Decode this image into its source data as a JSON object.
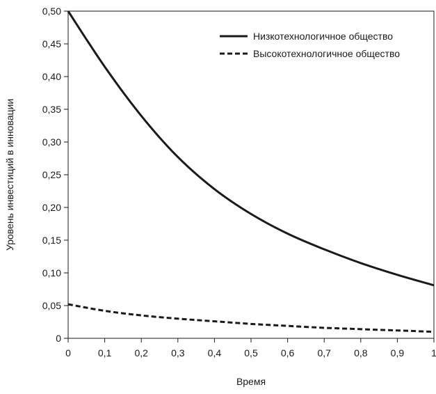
{
  "chart_data": {
    "type": "line",
    "title": "",
    "xlabel": "Время",
    "ylabel": "Уровень инвестиций в инновации",
    "xlim": [
      0,
      1
    ],
    "ylim": [
      0,
      0.5
    ],
    "x_ticks": [
      "0",
      "0,1",
      "0,2",
      "0,3",
      "0,4",
      "0,5",
      "0,6",
      "0,7",
      "0,8",
      "0,9",
      "1"
    ],
    "y_ticks": [
      "0",
      "0,05",
      "0,10",
      "0,15",
      "0,20",
      "0,25",
      "0,30",
      "0,35",
      "0,40",
      "0,45",
      "0,50"
    ],
    "grid": false,
    "legend_position": "top-right",
    "x": [
      0,
      0.1,
      0.2,
      0.3,
      0.4,
      0.5,
      0.6,
      0.7,
      0.8,
      0.9,
      1.0
    ],
    "series": [
      {
        "name": "Низкотехнологичное общество",
        "line_style": "solid",
        "color": "#1a1a1a",
        "values": [
          0.5,
          0.415,
          0.34,
          0.277,
          0.228,
          0.19,
          0.16,
          0.136,
          0.115,
          0.097,
          0.081
        ]
      },
      {
        "name": "Высокотехнологичное общество",
        "line_style": "dashed",
        "color": "#1a1a1a",
        "values": [
          0.052,
          0.042,
          0.035,
          0.03,
          0.026,
          0.022,
          0.019,
          0.016,
          0.014,
          0.012,
          0.01
        ]
      }
    ]
  }
}
